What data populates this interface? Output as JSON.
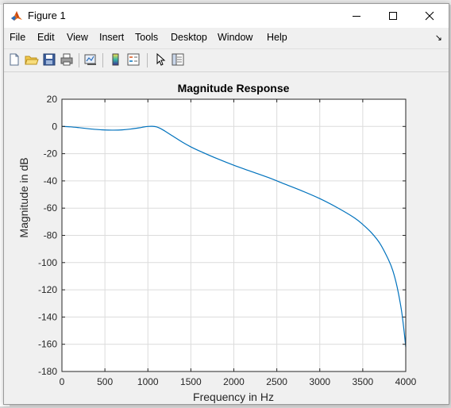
{
  "window": {
    "title": "Figure 1",
    "controls": {
      "minimize": "minimize",
      "maximize": "maximize",
      "close": "close"
    }
  },
  "menu": [
    "File",
    "Edit",
    "View",
    "Insert",
    "Tools",
    "Desktop",
    "Window",
    "Help"
  ],
  "toolbar": {
    "buttons": [
      "new-figure-icon",
      "open-file-icon",
      "save-icon",
      "print-icon",
      "link-plot-icon",
      "colorbar-icon",
      "legend-icon",
      "pointer-icon",
      "property-inspector-icon"
    ]
  },
  "colors": {
    "line": "#0072bd",
    "grid": "#dcdcdc",
    "axes": "#262626",
    "plot_bg": "#ffffff",
    "figure_bg": "#f0f0f0"
  },
  "chart_data": {
    "type": "line",
    "title": "Magnitude Response",
    "xlabel": "Frequency in Hz",
    "ylabel": "Magnitude in dB",
    "xlim": [
      0,
      4000
    ],
    "ylim": [
      -180,
      20
    ],
    "xticks": [
      "0",
      "500",
      "1000",
      "1500",
      "2000",
      "2500",
      "3000",
      "3500",
      "4000"
    ],
    "yticks": [
      "20",
      "0",
      "-20",
      "-40",
      "-60",
      "-80",
      "-100",
      "-120",
      "-140",
      "-160",
      "-180"
    ],
    "grid": true,
    "series": [
      {
        "x": [
          0,
          100,
          200,
          300,
          400,
          500,
          600,
          700,
          800,
          900,
          950,
          1000,
          1050,
          1100,
          1150,
          1200,
          1300,
          1400,
          1500,
          1600,
          1800,
          2000,
          2200,
          2400,
          2600,
          2800,
          3000,
          3200,
          3400,
          3500,
          3600,
          3700,
          3800,
          3850,
          3900,
          3950,
          3980,
          4000
        ],
        "y": [
          0,
          -0.3,
          -0.9,
          -1.6,
          -2.2,
          -2.6,
          -2.7,
          -2.5,
          -1.9,
          -1.0,
          -0.4,
          0,
          0.1,
          -0.3,
          -1.6,
          -3.5,
          -7.5,
          -11.5,
          -15,
          -18,
          -23.5,
          -28.5,
          -33,
          -37.5,
          -42.5,
          -47.5,
          -53,
          -59.5,
          -67,
          -72,
          -78,
          -86,
          -98,
          -106,
          -118,
          -135,
          -150,
          -162
        ]
      }
    ]
  }
}
